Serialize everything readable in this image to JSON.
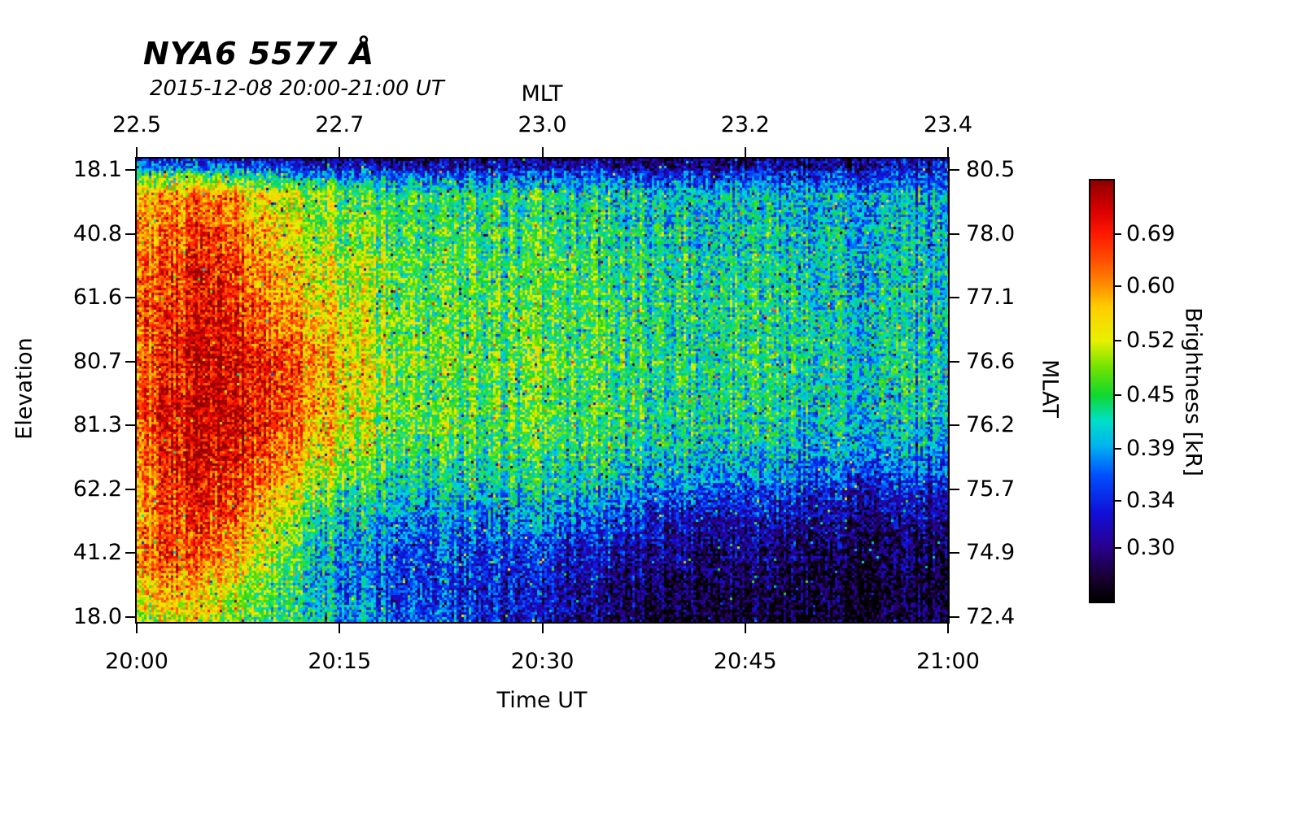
{
  "title": "NYA6 5577 Å",
  "subtitle": "2015-12-08 20:00-21:00 UT",
  "axes": {
    "top": {
      "title": "MLT",
      "ticks": [
        "22.5",
        "22.7",
        "23.0",
        "23.2",
        "23.4"
      ]
    },
    "bottom": {
      "title": "Time UT",
      "ticks": [
        "20:00",
        "20:15",
        "20:30",
        "20:45",
        "21:00"
      ]
    },
    "left": {
      "title": "Elevation",
      "ticks": [
        "18.1",
        "40.8",
        "61.6",
        "80.7",
        "81.3",
        "62.2",
        "41.2",
        "18.0"
      ]
    },
    "right": {
      "title": "MLAT",
      "ticks": [
        "80.5",
        "78.0",
        "77.1",
        "76.6",
        "76.2",
        "75.7",
        "74.9",
        "72.4"
      ]
    }
  },
  "colorbar": {
    "title": "Brightness [kR]",
    "tick_labels": [
      "0.69",
      "0.60",
      "0.52",
      "0.45",
      "0.39",
      "0.34",
      "0.30"
    ]
  },
  "chart_data": {
    "type": "heatmap",
    "title": "NYA6 5577 Å",
    "subtitle": "2015-12-08 20:00-21:00 UT",
    "x_axis_bottom": {
      "label": "Time UT",
      "ticks": [
        "20:00",
        "20:15",
        "20:30",
        "20:45",
        "21:00"
      ],
      "range": [
        "20:00",
        "21:00"
      ]
    },
    "x_axis_top": {
      "label": "MLT",
      "ticks": [
        22.5,
        22.7,
        23.0,
        23.2,
        23.4
      ]
    },
    "y_axis_left": {
      "label": "Elevation",
      "ticks": [
        18.1,
        40.8,
        61.6,
        80.7,
        81.3,
        62.2,
        41.2,
        18.0
      ]
    },
    "y_axis_right": {
      "label": "MLAT",
      "ticks": [
        80.5,
        78.0,
        77.1,
        76.6,
        76.2,
        75.7,
        74.9,
        72.4
      ]
    },
    "colorbar": {
      "label": "Brightness [kR]",
      "ticks": [
        0.69,
        0.6,
        0.52,
        0.45,
        0.39,
        0.34,
        0.3
      ],
      "scale": "log",
      "vmin": 0.26,
      "vmax": 0.795
    },
    "grid_description": "Estimated brightness in kR on a coarse grid; rows top-to-bottom span elevation 18.1 to 18.0 (MLAT 80.5 to 72.4), columns left-to-right span 20:00 to 21:00 UT. Bright red auroral structure 20:00-20:13 UT, diffuse green after, dark band at top edge and dark bottom-right quadrant.",
    "values_kR_grid": [
      [
        0.33,
        0.32,
        0.31,
        0.3,
        0.3,
        0.29,
        0.29,
        0.29,
        0.29,
        0.28,
        0.29,
        0.29,
        0.28,
        0.29,
        0.29,
        0.28,
        0.29,
        0.29,
        0.28,
        0.29,
        0.29,
        0.3,
        0.3,
        0.3,
        0.31
      ],
      [
        0.56,
        0.6,
        0.62,
        0.58,
        0.52,
        0.5,
        0.48,
        0.46,
        0.45,
        0.44,
        0.44,
        0.43,
        0.43,
        0.42,
        0.42,
        0.42,
        0.41,
        0.41,
        0.41,
        0.4,
        0.4,
        0.4,
        0.39,
        0.39,
        0.38
      ],
      [
        0.58,
        0.64,
        0.68,
        0.62,
        0.55,
        0.51,
        0.48,
        0.47,
        0.46,
        0.45,
        0.45,
        0.44,
        0.44,
        0.44,
        0.43,
        0.43,
        0.43,
        0.42,
        0.42,
        0.41,
        0.41,
        0.4,
        0.4,
        0.4,
        0.39
      ],
      [
        0.6,
        0.66,
        0.71,
        0.66,
        0.58,
        0.54,
        0.5,
        0.48,
        0.47,
        0.46,
        0.46,
        0.45,
        0.45,
        0.45,
        0.44,
        0.44,
        0.44,
        0.43,
        0.43,
        0.42,
        0.42,
        0.41,
        0.41,
        0.4,
        0.4
      ],
      [
        0.62,
        0.68,
        0.72,
        0.68,
        0.6,
        0.56,
        0.52,
        0.49,
        0.47,
        0.46,
        0.46,
        0.46,
        0.45,
        0.45,
        0.45,
        0.44,
        0.44,
        0.44,
        0.43,
        0.43,
        0.42,
        0.42,
        0.41,
        0.41,
        0.4
      ],
      [
        0.62,
        0.7,
        0.74,
        0.72,
        0.66,
        0.6,
        0.55,
        0.5,
        0.48,
        0.47,
        0.46,
        0.46,
        0.46,
        0.45,
        0.45,
        0.45,
        0.44,
        0.44,
        0.44,
        0.43,
        0.43,
        0.42,
        0.42,
        0.41,
        0.41
      ],
      [
        0.6,
        0.7,
        0.75,
        0.73,
        0.68,
        0.62,
        0.56,
        0.51,
        0.48,
        0.47,
        0.47,
        0.46,
        0.46,
        0.46,
        0.45,
        0.45,
        0.45,
        0.44,
        0.44,
        0.43,
        0.43,
        0.42,
        0.42,
        0.41,
        0.41
      ],
      [
        0.62,
        0.72,
        0.76,
        0.74,
        0.68,
        0.62,
        0.55,
        0.5,
        0.48,
        0.47,
        0.46,
        0.46,
        0.46,
        0.45,
        0.45,
        0.45,
        0.44,
        0.44,
        0.43,
        0.43,
        0.42,
        0.42,
        0.41,
        0.41,
        0.4
      ],
      [
        0.6,
        0.7,
        0.75,
        0.72,
        0.65,
        0.58,
        0.52,
        0.48,
        0.46,
        0.45,
        0.45,
        0.45,
        0.44,
        0.44,
        0.44,
        0.43,
        0.43,
        0.42,
        0.42,
        0.41,
        0.4,
        0.4,
        0.39,
        0.39,
        0.38
      ],
      [
        0.58,
        0.68,
        0.72,
        0.68,
        0.6,
        0.52,
        0.47,
        0.44,
        0.43,
        0.42,
        0.42,
        0.42,
        0.42,
        0.41,
        0.41,
        0.4,
        0.39,
        0.38,
        0.37,
        0.36,
        0.35,
        0.35,
        0.34,
        0.34,
        0.33
      ],
      [
        0.56,
        0.66,
        0.7,
        0.64,
        0.54,
        0.47,
        0.42,
        0.4,
        0.39,
        0.38,
        0.38,
        0.38,
        0.38,
        0.37,
        0.36,
        0.35,
        0.34,
        0.33,
        0.32,
        0.32,
        0.31,
        0.31,
        0.3,
        0.3,
        0.3
      ],
      [
        0.6,
        0.68,
        0.66,
        0.58,
        0.5,
        0.44,
        0.39,
        0.37,
        0.36,
        0.36,
        0.35,
        0.35,
        0.34,
        0.33,
        0.32,
        0.31,
        0.31,
        0.3,
        0.3,
        0.29,
        0.29,
        0.29,
        0.28,
        0.28,
        0.28
      ],
      [
        0.55,
        0.6,
        0.58,
        0.52,
        0.46,
        0.42,
        0.38,
        0.36,
        0.35,
        0.35,
        0.34,
        0.33,
        0.32,
        0.31,
        0.3,
        0.3,
        0.29,
        0.29,
        0.28,
        0.28,
        0.28,
        0.27,
        0.27,
        0.27,
        0.27
      ],
      [
        0.48,
        0.52,
        0.52,
        0.48,
        0.45,
        0.43,
        0.4,
        0.38,
        0.37,
        0.36,
        0.34,
        0.32,
        0.31,
        0.3,
        0.29,
        0.28,
        0.28,
        0.27,
        0.27,
        0.27,
        0.27,
        0.27,
        0.27,
        0.27,
        0.27
      ]
    ],
    "colormap": [
      [
        0.0,
        "#000000"
      ],
      [
        0.05,
        "#16002a"
      ],
      [
        0.13,
        "#2a0090"
      ],
      [
        0.21,
        "#1010d8"
      ],
      [
        0.3,
        "#0050ff"
      ],
      [
        0.37,
        "#00b4f0"
      ],
      [
        0.43,
        "#00e0c8"
      ],
      [
        0.49,
        "#10d830"
      ],
      [
        0.56,
        "#78e400"
      ],
      [
        0.62,
        "#e8f000"
      ],
      [
        0.7,
        "#ffce00"
      ],
      [
        0.75,
        "#ff9000"
      ],
      [
        0.81,
        "#ff5000"
      ],
      [
        0.875,
        "#ff1800"
      ],
      [
        0.93,
        "#d80000"
      ],
      [
        1.0,
        "#900000"
      ]
    ]
  }
}
